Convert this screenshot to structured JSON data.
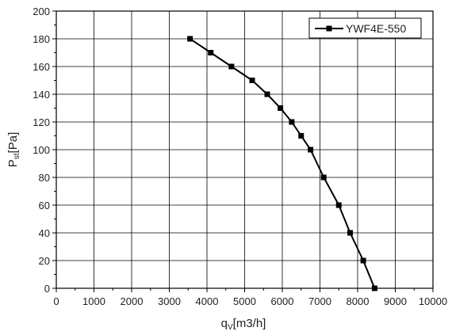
{
  "chart_data": {
    "type": "line",
    "xlabel_main": "q",
    "xlabel_sub": "V",
    "xlabel_unit": "[m3/h]",
    "ylabel_main": "P",
    "ylabel_sub": "st",
    "ylabel_unit": "[Pa]",
    "xlim": [
      0,
      10000
    ],
    "ylim": [
      0,
      200
    ],
    "xticks": [
      "0",
      "1000",
      "2000",
      "3000",
      "4000",
      "5000",
      "6000",
      "7000",
      "8000",
      "9000",
      "10000"
    ],
    "yticks": [
      "0",
      "20",
      "40",
      "60",
      "80",
      "100",
      "120",
      "140",
      "160",
      "180",
      "200"
    ],
    "grid": true,
    "legend_position": "top-right",
    "series": [
      {
        "name": "YWF4E-550",
        "color": "#000000",
        "marker": "square",
        "x": [
          3550,
          4100,
          4650,
          5200,
          5600,
          5950,
          6250,
          6500,
          6750,
          7100,
          7500,
          7800,
          8150,
          8450
        ],
        "y": [
          180,
          170,
          160,
          150,
          140,
          130,
          120,
          110,
          100,
          80,
          60,
          40,
          20,
          0
        ]
      }
    ]
  }
}
